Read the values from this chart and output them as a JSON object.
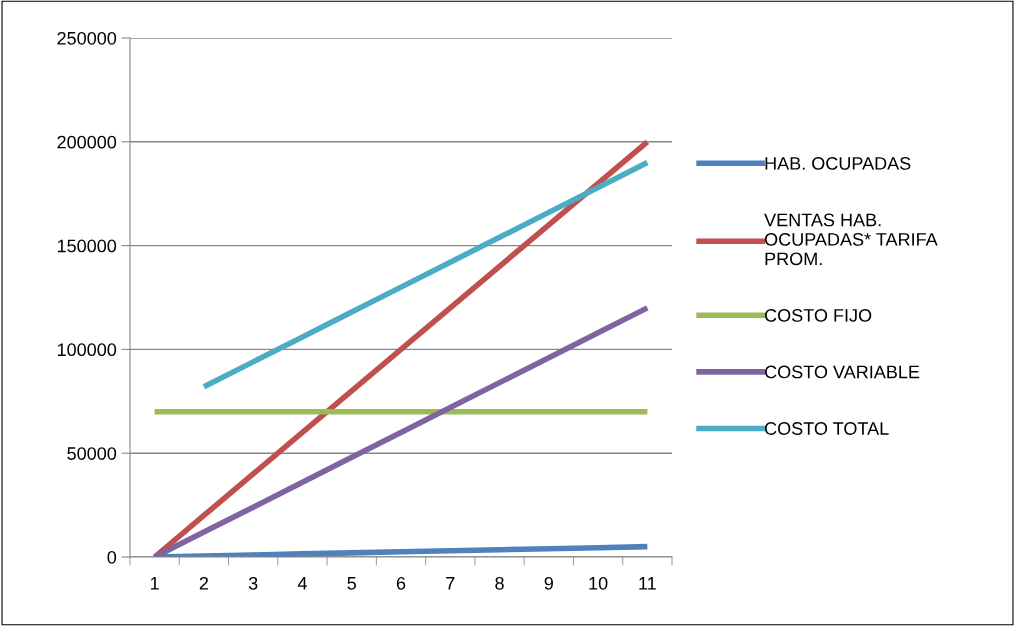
{
  "chart_data": {
    "type": "line",
    "categories": [
      "1",
      "2",
      "3",
      "4",
      "5",
      "6",
      "7",
      "8",
      "9",
      "10",
      "11"
    ],
    "series": [
      {
        "name": "HAB. OCUPADAS",
        "color": "#4f81bd",
        "values": [
          0,
          500,
          1000,
          1500,
          2000,
          2500,
          3000,
          3500,
          4000,
          4500,
          5000
        ]
      },
      {
        "name": "VENTAS HAB.\nOCUPADAS* TARIFA\nPROM.",
        "color": "#c0504d",
        "values": [
          0,
          20000,
          40000,
          60000,
          80000,
          100000,
          120000,
          140000,
          160000,
          180000,
          200000
        ]
      },
      {
        "name": "COSTO FIJO",
        "color": "#9bbb59",
        "values": [
          70000,
          70000,
          70000,
          70000,
          70000,
          70000,
          70000,
          70000,
          70000,
          70000,
          70000
        ]
      },
      {
        "name": "COSTO VARIABLE",
        "color": "#8064a2",
        "values": [
          0,
          12000,
          24000,
          36000,
          48000,
          60000,
          72000,
          84000,
          96000,
          108000,
          120000
        ]
      },
      {
        "name": "COSTO TOTAL",
        "color": "#4bacc6",
        "values": [
          null,
          82000,
          94000,
          106000,
          118000,
          130000,
          142000,
          154000,
          166000,
          178000,
          190000
        ]
      }
    ],
    "ylim": [
      0,
      250000
    ],
    "yticks": [
      0,
      50000,
      100000,
      150000,
      200000,
      250000
    ],
    "grid": "y",
    "legend": "right",
    "marker": "none",
    "line_style": "solid"
  }
}
